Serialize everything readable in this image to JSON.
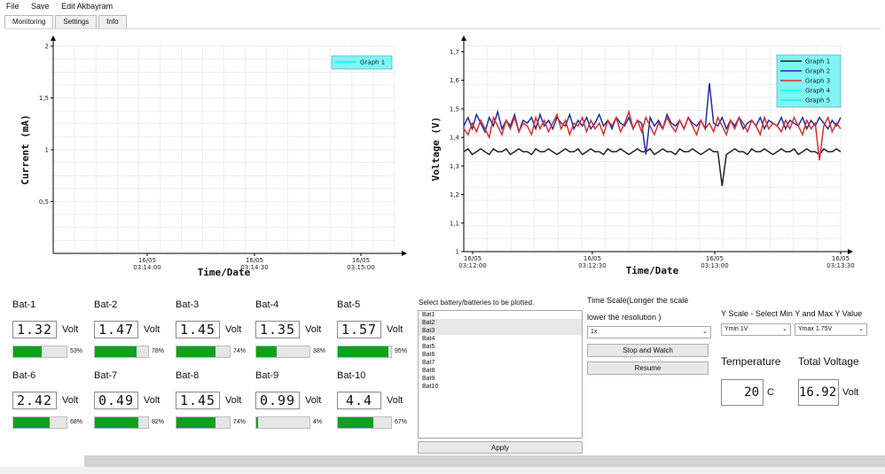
{
  "menu": [
    "File",
    "Save",
    "Edit Akbayram"
  ],
  "tabs": [
    "Monitoring",
    "Settings",
    "Info"
  ],
  "chart_data": [
    {
      "type": "line",
      "xlabel": "Time/Date",
      "ylabel": "Current (mA)",
      "ylim": [
        0,
        2
      ],
      "yticks": [
        "0,5",
        "1",
        "1,5",
        "2"
      ],
      "xticks": [
        [
          "16/05",
          "03:14:00"
        ],
        [
          "16/05",
          "03:14:30"
        ],
        [
          "16/05",
          "03:15:00"
        ]
      ],
      "legend": "top-right",
      "series": [
        {
          "name": "Graph 1",
          "color": "#00ffff",
          "values": []
        }
      ],
      "grid": true
    },
    {
      "type": "line",
      "xlabel": "Time/Date",
      "ylabel": "Voltage (V)",
      "ylim": [
        1,
        1.72
      ],
      "yticks": [
        "1",
        "1,1",
        "1,2",
        "1,3",
        "1,4",
        "1,5",
        "1,6",
        "1,7"
      ],
      "xticks": [
        [
          "16/05",
          "03:12:00"
        ],
        [
          "16/05",
          "03:12:30"
        ],
        [
          "16/05",
          "03:13:00"
        ],
        [
          "16/05",
          "03:13:30"
        ]
      ],
      "legend": "top-right",
      "grid": true,
      "series": [
        {
          "name": "Graph 1",
          "color": "#222222",
          "values": [
            1.35,
            1.36,
            1.34,
            1.35,
            1.36,
            1.35,
            1.34,
            1.36,
            1.35,
            1.35,
            1.36,
            1.34,
            1.35,
            1.36,
            1.35,
            1.35,
            1.34,
            1.36,
            1.35,
            1.35,
            1.36,
            1.35,
            1.34,
            1.35,
            1.36,
            1.35,
            1.35,
            1.36,
            1.34,
            1.35,
            1.36,
            1.35,
            1.35,
            1.34,
            1.36,
            1.35,
            1.35,
            1.36,
            1.35,
            1.34,
            1.35,
            1.36,
            1.35,
            1.35,
            1.36,
            1.34,
            1.35,
            1.36,
            1.35,
            1.35,
            1.34,
            1.36,
            1.35,
            1.35,
            1.36,
            1.35,
            1.34,
            1.35,
            1.36,
            1.35,
            1.35,
            1.23,
            1.34,
            1.35,
            1.36,
            1.35,
            1.35,
            1.34,
            1.36,
            1.35,
            1.35,
            1.36,
            1.35,
            1.34,
            1.35,
            1.36,
            1.35,
            1.35,
            1.36,
            1.34,
            1.35,
            1.36,
            1.35,
            1.35,
            1.34,
            1.36,
            1.35,
            1.35,
            1.36,
            1.35
          ]
        },
        {
          "name": "Graph 2",
          "color": "#1f2f9e",
          "values": [
            1.44,
            1.47,
            1.43,
            1.48,
            1.45,
            1.42,
            1.47,
            1.44,
            1.49,
            1.43,
            1.46,
            1.44,
            1.48,
            1.42,
            1.46,
            1.45,
            1.47,
            1.43,
            1.48,
            1.44,
            1.46,
            1.43,
            1.47,
            1.45,
            1.44,
            1.48,
            1.43,
            1.46,
            1.44,
            1.47,
            1.43,
            1.45,
            1.48,
            1.44,
            1.46,
            1.43,
            1.47,
            1.45,
            1.44,
            1.47,
            1.43,
            1.46,
            1.45,
            1.34,
            1.47,
            1.44,
            1.46,
            1.43,
            1.48,
            1.45,
            1.44,
            1.46,
            1.43,
            1.47,
            1.45,
            1.44,
            1.46,
            1.43,
            1.59,
            1.45,
            1.44,
            1.47,
            1.43,
            1.46,
            1.44,
            1.47,
            1.43,
            1.45,
            1.46,
            1.44,
            1.47,
            1.43,
            1.46,
            1.45,
            1.44,
            1.47,
            1.43,
            1.46,
            1.45,
            1.44,
            1.47,
            1.43,
            1.46,
            1.44,
            1.47,
            1.45,
            1.43,
            1.46,
            1.44,
            1.47
          ]
        },
        {
          "name": "Graph 3",
          "color": "#d43030",
          "values": [
            1.43,
            1.41,
            1.45,
            1.42,
            1.46,
            1.43,
            1.4,
            1.47,
            1.44,
            1.41,
            1.46,
            1.43,
            1.47,
            1.42,
            1.45,
            1.44,
            1.41,
            1.47,
            1.43,
            1.46,
            1.42,
            1.45,
            1.48,
            1.43,
            1.46,
            1.41,
            1.45,
            1.44,
            1.47,
            1.42,
            1.46,
            1.43,
            1.45,
            1.41,
            1.46,
            1.44,
            1.47,
            1.42,
            1.45,
            1.49,
            1.43,
            1.46,
            1.42,
            1.47,
            1.44,
            1.41,
            1.45,
            1.43,
            1.47,
            1.44,
            1.42,
            1.46,
            1.43,
            1.47,
            1.44,
            1.41,
            1.46,
            1.43,
            1.45,
            1.42,
            1.47,
            1.44,
            1.41,
            1.46,
            1.43,
            1.47,
            1.45,
            1.42,
            1.46,
            1.44,
            1.41,
            1.47,
            1.43,
            1.45,
            1.44,
            1.42,
            1.46,
            1.43,
            1.47,
            1.44,
            1.41,
            1.46,
            1.43,
            1.45,
            1.32,
            1.44,
            1.47,
            1.42,
            1.45,
            1.43
          ]
        },
        {
          "name": "Graph 4",
          "color": "#00ffff",
          "values": []
        },
        {
          "name": "Graph 5",
          "color": "#00ffff",
          "values": []
        }
      ]
    }
  ],
  "batteries": [
    {
      "name": "Bat-1",
      "value": "1.32",
      "unit": "Volt",
      "percent": "53%",
      "level": 0.53
    },
    {
      "name": "Bat-2",
      "value": "1.47",
      "unit": "Volt",
      "percent": "78%",
      "level": 0.78
    },
    {
      "name": "Bat-3",
      "value": "1.45",
      "unit": "Volt",
      "percent": "74%",
      "level": 0.74
    },
    {
      "name": "Bat-4",
      "value": "1.35",
      "unit": "Volt",
      "percent": "38%",
      "level": 0.38
    },
    {
      "name": "Bat-5",
      "value": "1.57",
      "unit": "Volt",
      "percent": "95%",
      "level": 0.95
    },
    {
      "name": "Bat-6",
      "value": "2.42",
      "unit": "Volt",
      "percent": "68%",
      "level": 0.68
    },
    {
      "name": "Bat-7",
      "value": "0.49",
      "unit": "Volt",
      "percent": "82%",
      "level": 0.82
    },
    {
      "name": "Bat-8",
      "value": "1.45",
      "unit": "Volt",
      "percent": "74%",
      "level": 0.74
    },
    {
      "name": "Bat-9",
      "value": "0.99",
      "unit": "Volt",
      "percent": "4%",
      "level": 0.04
    },
    {
      "name": "Bat-10",
      "value": "4.4",
      "unit": "Volt",
      "percent": "67%",
      "level": 0.67
    }
  ],
  "select_label": "Select battery/batteries to be plotted.",
  "battery_list": [
    "Bat1",
    "Bat2",
    "Bat3",
    "Bat4",
    "Bat5",
    "Bat6",
    "Bat7",
    "Bat8",
    "Bat9",
    "Bat10"
  ],
  "battery_list_selected": [
    1,
    2
  ],
  "apply_label": "Apply",
  "time_scale": {
    "label1": "Time Scale(Longer the scale",
    "label2": "lower the resolution )",
    "value": "1x"
  },
  "stop_label": "Stop and Watch",
  "resume_label": "Resume",
  "yscale": {
    "label": "Y Scale - Select Min Y and Max Y Value",
    "min": "Ymin 1V",
    "max": "Ymax 1.75V"
  },
  "temperature": {
    "label": "Temperature",
    "value": "20",
    "unit": "C"
  },
  "total_voltage": {
    "label": "Total Voltage",
    "value": "16.92",
    "unit": "Volt"
  }
}
